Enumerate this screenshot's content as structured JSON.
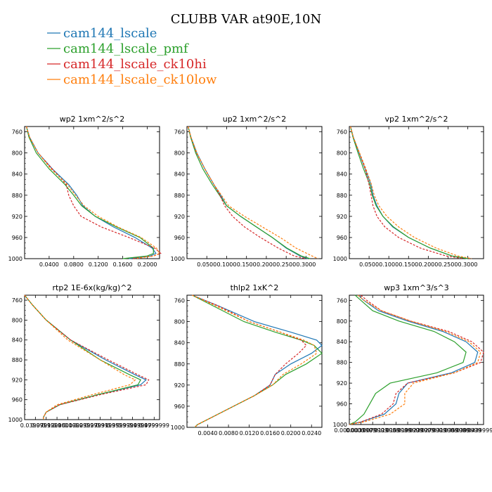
{
  "figure": {
    "title": "CLUBB VAR at90E,10N",
    "colors": {
      "blue": "#1f77b4",
      "green": "#2ca02c",
      "red": "#d62728",
      "orange": "#ff7f0e"
    },
    "legend": [
      {
        "name": "cam144_lscale",
        "color": "#1f77b4"
      },
      {
        "name": "cam144_lscale_pmf",
        "color": "#2ca02c"
      },
      {
        "name": "cam144_lscale_ck10hi",
        "color": "#d62728"
      },
      {
        "name": "cam144_lscale_ck10low",
        "color": "#ff7f0e"
      }
    ]
  },
  "chart_data": [
    {
      "type": "line",
      "title": "wp2 1xm^2/s^2",
      "xlim": [
        0.0,
        0.22
      ],
      "ylim": [
        1000,
        750
      ],
      "x_ticks": [
        0.04,
        0.08,
        0.12,
        0.16,
        0.2
      ],
      "x_tick_labels": [
        "0.0400",
        "0.0800",
        "0.1200",
        "0.1600",
        "0.2000"
      ],
      "y_ticks": [
        760,
        800,
        840,
        880,
        920,
        960,
        1000
      ],
      "y_tick_labels": [
        "760",
        "800",
        "840",
        "880",
        "920",
        "960",
        "1000"
      ],
      "y": [
        750,
        770,
        800,
        830,
        860,
        880,
        900,
        920,
        940,
        960,
        980,
        990,
        995,
        1000
      ],
      "series": [
        {
          "name": "cam144_lscale",
          "color": "#1f77b4",
          "dashed": false,
          "x": [
            0.003,
            0.008,
            0.022,
            0.045,
            0.072,
            0.085,
            0.095,
            0.115,
            0.145,
            0.18,
            0.208,
            0.214,
            0.205,
            0.17
          ]
        },
        {
          "name": "cam144_lscale_pmf",
          "color": "#2ca02c",
          "dashed": false,
          "x": [
            0.003,
            0.007,
            0.019,
            0.04,
            0.066,
            0.08,
            0.093,
            0.115,
            0.15,
            0.188,
            0.21,
            0.21,
            0.2,
            0.16
          ]
        },
        {
          "name": "cam144_lscale_ck10hi",
          "color": "#d62728",
          "dashed": true,
          "x": [
            0.003,
            0.008,
            0.022,
            0.045,
            0.068,
            0.072,
            0.08,
            0.092,
            0.125,
            0.17,
            0.212,
            0.222,
            0.21,
            0.175
          ]
        },
        {
          "name": "cam144_lscale_ck10low",
          "color": "#ff7f0e",
          "dashed": true,
          "x": [
            0.003,
            0.008,
            0.022,
            0.043,
            0.07,
            0.083,
            0.097,
            0.12,
            0.152,
            0.19,
            0.215,
            0.22,
            0.21,
            0.18
          ]
        }
      ]
    },
    {
      "type": "line",
      "title": "up2 1xm^2/s^2",
      "xlim": [
        0.0,
        0.34
      ],
      "ylim": [
        1000,
        750
      ],
      "x_ticks": [
        0.05,
        0.1,
        0.15,
        0.2,
        0.25,
        0.3
      ],
      "x_tick_labels": [
        "0.0500",
        "0.1000",
        "0.1500",
        "0.2000",
        "0.2500",
        "0.3000"
      ],
      "y_ticks": [
        760,
        800,
        840,
        880,
        920,
        960,
        1000
      ],
      "y_tick_labels": [
        "760",
        "800",
        "840",
        "880",
        "920",
        "960",
        "1000"
      ],
      "y": [
        750,
        770,
        800,
        830,
        860,
        880,
        900,
        920,
        940,
        960,
        980,
        995,
        1000
      ],
      "series": [
        {
          "name": "cam144_lscale",
          "color": "#1f77b4",
          "dashed": false,
          "x": [
            0.003,
            0.01,
            0.025,
            0.045,
            0.068,
            0.085,
            0.1,
            0.135,
            0.175,
            0.215,
            0.25,
            0.285,
            0.305
          ]
        },
        {
          "name": "cam144_lscale_pmf",
          "color": "#2ca02c",
          "dashed": false,
          "x": [
            0.003,
            0.009,
            0.022,
            0.04,
            0.064,
            0.082,
            0.1,
            0.135,
            0.175,
            0.215,
            0.252,
            0.288,
            0.31
          ]
        },
        {
          "name": "cam144_lscale_ck10hi",
          "color": "#d62728",
          "dashed": true,
          "x": [
            0.003,
            0.01,
            0.024,
            0.045,
            0.068,
            0.083,
            0.095,
            0.115,
            0.145,
            0.185,
            0.23,
            0.27,
            0.3
          ]
        },
        {
          "name": "cam144_lscale_ck10low",
          "color": "#ff7f0e",
          "dashed": true,
          "x": [
            0.003,
            0.01,
            0.025,
            0.045,
            0.068,
            0.087,
            0.105,
            0.145,
            0.19,
            0.235,
            0.275,
            0.315,
            0.33
          ]
        }
      ]
    },
    {
      "type": "line",
      "title": "vp2 1xm^2/s^2",
      "xlim": [
        0.0,
        0.34
      ],
      "ylim": [
        1000,
        750
      ],
      "x_ticks": [
        0.05,
        0.1,
        0.15,
        0.2,
        0.25,
        0.3
      ],
      "x_tick_labels": [
        "0.0500",
        "0.1000",
        "0.1500",
        "0.2000",
        "0.2500",
        "0.3000"
      ],
      "y_ticks": [
        760,
        800,
        840,
        880,
        920,
        960,
        1000
      ],
      "y_tick_labels": [
        "760",
        "800",
        "840",
        "880",
        "920",
        "960",
        "1000"
      ],
      "y": [
        750,
        770,
        800,
        830,
        860,
        880,
        900,
        920,
        940,
        960,
        980,
        995,
        1000
      ],
      "series": [
        {
          "name": "cam144_lscale",
          "color": "#1f77b4",
          "dashed": false,
          "x": [
            0.003,
            0.01,
            0.025,
            0.04,
            0.055,
            0.06,
            0.07,
            0.085,
            0.11,
            0.15,
            0.205,
            0.26,
            0.3
          ]
        },
        {
          "name": "cam144_lscale_pmf",
          "color": "#2ca02c",
          "dashed": false,
          "x": [
            0.003,
            0.009,
            0.022,
            0.036,
            0.052,
            0.058,
            0.068,
            0.085,
            0.112,
            0.15,
            0.205,
            0.26,
            0.3
          ]
        },
        {
          "name": "cam144_lscale_ck10hi",
          "color": "#d62728",
          "dashed": true,
          "x": [
            0.003,
            0.01,
            0.025,
            0.04,
            0.05,
            0.055,
            0.06,
            0.07,
            0.09,
            0.125,
            0.18,
            0.245,
            0.29
          ]
        },
        {
          "name": "cam144_lscale_ck10low",
          "color": "#ff7f0e",
          "dashed": true,
          "x": [
            0.003,
            0.01,
            0.026,
            0.042,
            0.056,
            0.063,
            0.075,
            0.095,
            0.125,
            0.165,
            0.22,
            0.275,
            0.31
          ]
        }
      ]
    },
    {
      "type": "line",
      "title": "rtp2 1E-6x(kg/kg)^2",
      "xlim": [
        0.0,
        0.5
      ],
      "ylim": [
        1000,
        750
      ],
      "x_ticks": [
        0.04,
        0.08,
        0.12,
        0.16,
        0.2,
        0.24,
        0.28,
        0.32,
        0.36,
        0.4,
        0.44,
        0.48
      ],
      "x_tick_labels": [
        "0.0399999",
        "0.0799999",
        "0.1200000",
        "0.1600000",
        "0.1999999",
        "0.2399999",
        "0.2799999",
        "0.3199999",
        "0.3599999",
        "0.3999999",
        "0.4399999",
        "0.4799999"
      ],
      "y_ticks": [
        760,
        800,
        840,
        880,
        920,
        960,
        1000
      ],
      "y_tick_labels": [
        "760",
        "800",
        "840",
        "880",
        "920",
        "960",
        "1000"
      ],
      "y": [
        750,
        770,
        800,
        840,
        880,
        910,
        920,
        930,
        950,
        970,
        985,
        995,
        1000
      ],
      "series": [
        {
          "name": "cam144_lscale",
          "color": "#1f77b4",
          "dashed": false,
          "x": [
            0.0,
            0.03,
            0.08,
            0.17,
            0.3,
            0.41,
            0.45,
            0.43,
            0.27,
            0.13,
            0.08,
            0.07,
            0.07
          ]
        },
        {
          "name": "cam144_lscale_pmf",
          "color": "#2ca02c",
          "dashed": false,
          "x": [
            0.0,
            0.03,
            0.08,
            0.17,
            0.28,
            0.39,
            0.43,
            0.42,
            0.27,
            0.13,
            0.08,
            0.07,
            0.07
          ]
        },
        {
          "name": "cam144_lscale_ck10hi",
          "color": "#d62728",
          "dashed": true,
          "x": [
            0.0,
            0.03,
            0.08,
            0.17,
            0.31,
            0.42,
            0.46,
            0.45,
            0.28,
            0.13,
            0.08,
            0.07,
            0.07
          ]
        },
        {
          "name": "cam144_lscale_ck10low",
          "color": "#ff7f0e",
          "dashed": true,
          "x": [
            0.0,
            0.03,
            0.08,
            0.16,
            0.28,
            0.37,
            0.41,
            0.39,
            0.25,
            0.12,
            0.08,
            0.07,
            0.07
          ]
        }
      ]
    },
    {
      "type": "line",
      "title": "thlp2 1xK^2",
      "xlim": [
        0.0,
        0.026
      ],
      "ylim": [
        1000,
        750
      ],
      "x_ticks": [
        0.004,
        0.008,
        0.012,
        0.016,
        0.02,
        0.024
      ],
      "x_tick_labels": [
        "0.0040",
        "0.0080",
        "0.0120",
        "0.0160",
        "0.0200",
        "0.0240"
      ],
      "y_ticks": [
        760,
        800,
        840,
        880,
        920,
        960,
        1000
      ],
      "y_tick_labels": [
        "760",
        "800",
        "840",
        "880",
        "920",
        "960",
        "1000"
      ],
      "y": [
        750,
        770,
        800,
        820,
        835,
        845,
        860,
        880,
        900,
        920,
        940,
        960,
        980,
        995,
        1000
      ],
      "series": [
        {
          "name": "cam144_lscale",
          "color": "#1f77b4",
          "dashed": false,
          "x": [
            0.001,
            0.006,
            0.013,
            0.02,
            0.025,
            0.026,
            0.024,
            0.02,
            0.017,
            0.016,
            0.013,
            0.009,
            0.005,
            0.002,
            0.0015
          ]
        },
        {
          "name": "cam144_lscale_pmf",
          "color": "#2ca02c",
          "dashed": false,
          "x": [
            0.001,
            0.005,
            0.011,
            0.017,
            0.022,
            0.0245,
            0.026,
            0.023,
            0.019,
            0.0165,
            0.013,
            0.009,
            0.005,
            0.002,
            0.0015
          ]
        },
        {
          "name": "cam144_lscale_ck10hi",
          "color": "#d62728",
          "dashed": true,
          "x": [
            0.001,
            0.006,
            0.012,
            0.018,
            0.022,
            0.023,
            0.0215,
            0.019,
            0.017,
            0.016,
            0.013,
            0.009,
            0.005,
            0.002,
            0.0015
          ]
        },
        {
          "name": "cam144_lscale_ck10low",
          "color": "#ff7f0e",
          "dashed": true,
          "x": [
            0.001,
            0.0055,
            0.012,
            0.018,
            0.0225,
            0.0245,
            0.025,
            0.022,
            0.0185,
            0.0165,
            0.013,
            0.009,
            0.005,
            0.002,
            0.0015
          ]
        }
      ]
    },
    {
      "type": "line",
      "title": "wp3 1xm^3/s^3",
      "xlim": [
        0.0,
        0.046
      ],
      "ylim": [
        1000,
        750
      ],
      "x_ticks": [
        0.0,
        0.004,
        0.008,
        0.012,
        0.016,
        0.02,
        0.024,
        0.028,
        0.032,
        0.036,
        0.04,
        0.044
      ],
      "x_tick_labels": [
        "0.0000000",
        "0.0039999",
        "0.0079999",
        "0.0119999",
        "0.0159999",
        "0.0199999",
        "0.0239999",
        "0.0279999",
        "0.0319999",
        "0.0359999",
        "0.0399999",
        "0.0439999"
      ],
      "y_ticks": [
        760,
        800,
        840,
        880,
        920,
        960,
        1000
      ],
      "y_tick_labels": [
        "760",
        "800",
        "840",
        "880",
        "920",
        "960",
        "1000"
      ],
      "y": [
        750,
        760,
        780,
        800,
        820,
        840,
        860,
        880,
        900,
        920,
        940,
        960,
        980,
        995,
        1000
      ],
      "series": [
        {
          "name": "cam144_lscale",
          "color": "#1f77b4",
          "dashed": false,
          "x": [
            0.003,
            0.005,
            0.01,
            0.02,
            0.032,
            0.04,
            0.044,
            0.043,
            0.035,
            0.02,
            0.017,
            0.016,
            0.012,
            0.004,
            0.0
          ]
        },
        {
          "name": "cam144_lscale_pmf",
          "color": "#2ca02c",
          "dashed": false,
          "x": [
            0.002,
            0.004,
            0.008,
            0.017,
            0.029,
            0.036,
            0.04,
            0.039,
            0.03,
            0.014,
            0.009,
            0.007,
            0.005,
            0.002,
            0.0
          ]
        },
        {
          "name": "cam144_lscale_ck10hi",
          "color": "#d62728",
          "dashed": true,
          "x": [
            0.004,
            0.006,
            0.011,
            0.021,
            0.034,
            0.042,
            0.046,
            0.045,
            0.036,
            0.02,
            0.016,
            0.015,
            0.011,
            0.004,
            0.0
          ]
        },
        {
          "name": "cam144_lscale_ck10low",
          "color": "#ff7f0e",
          "dashed": true,
          "x": [
            0.003,
            0.005,
            0.011,
            0.021,
            0.033,
            0.041,
            0.045,
            0.044,
            0.036,
            0.022,
            0.019,
            0.019,
            0.014,
            0.005,
            0.0
          ]
        }
      ]
    }
  ]
}
